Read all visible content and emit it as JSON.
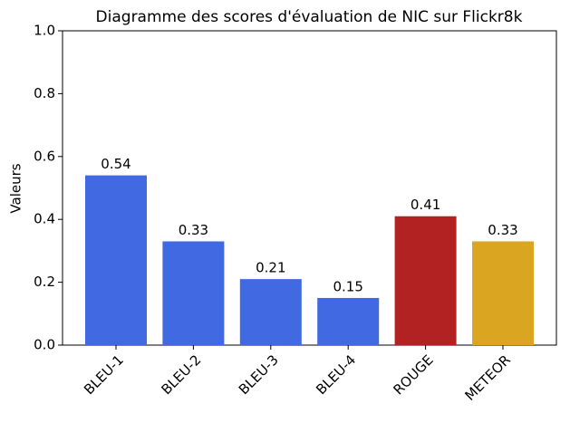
{
  "chart_data": {
    "type": "bar",
    "title": "Diagramme des scores d'évaluation de NIC sur Flickr8k",
    "ylabel": "Valeurs",
    "categories": [
      "BLEU-1",
      "BLEU-2",
      "BLEU-3",
      "BLEU-4",
      "ROUGE",
      "METEOR"
    ],
    "values": [
      0.54,
      0.33,
      0.21,
      0.15,
      0.41,
      0.33
    ],
    "colors": [
      "#4169e1",
      "#4169e1",
      "#4169e1",
      "#4169e1",
      "#b22222",
      "#daa520"
    ],
    "ylim": [
      0,
      1
    ],
    "yticks": [
      {
        "value": 0,
        "label": "0.0"
      },
      0.2,
      0.4,
      0.6,
      0.8,
      {
        "value": 1,
        "label": "1.0"
      }
    ],
    "grid": false
  }
}
